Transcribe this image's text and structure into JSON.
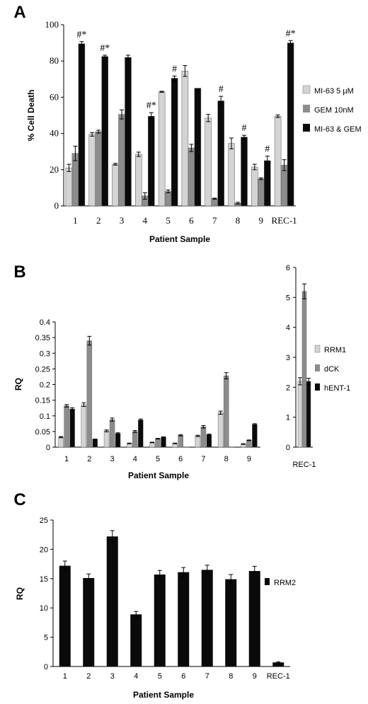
{
  "colors": {
    "light": "#d4d4d4",
    "mid": "#8c8c8c",
    "dark": "#0a0a0a"
  },
  "chart_data": [
    {
      "panel": "A",
      "type": "bar",
      "ylabel": "% Cell Death",
      "xlabel": "Patient Sample",
      "ylim": [
        0,
        100
      ],
      "yticks": [
        0,
        20,
        40,
        60,
        80,
        100
      ],
      "categories": [
        "1",
        "2",
        "3",
        "4",
        "5",
        "6",
        "7",
        "8",
        "9",
        "REC-1"
      ],
      "series": [
        {
          "name": "MI-63 5 μM",
          "color": "light",
          "values": [
            21,
            39.5,
            23,
            28.5,
            63,
            74.5,
            48.5,
            34.5,
            21.5,
            49.5
          ],
          "errors": [
            2,
            1,
            0.5,
            1.2,
            0.3,
            3,
            2,
            3,
            1.5,
            0.7
          ]
        },
        {
          "name": "GEM 10nM",
          "color": "mid",
          "values": [
            29,
            41,
            50.5,
            5.5,
            8,
            32,
            4,
            1.5,
            15,
            22.5
          ],
          "errors": [
            4,
            0.8,
            2.5,
            1.8,
            0.8,
            2,
            0.3,
            0.5,
            0.5,
            3
          ]
        },
        {
          "name": "MI-63 & GEM",
          "color": "dark",
          "values": [
            89.5,
            82.5,
            82,
            49.5,
            70.5,
            65,
            58,
            38,
            25,
            90
          ],
          "errors": [
            1.2,
            0.7,
            1.2,
            2,
            1.2,
            0,
            2.5,
            1,
            2.5,
            1.3
          ]
        }
      ],
      "annotations": [
        {
          "category": "1",
          "series": "MI-63 & GEM",
          "text": "#*"
        },
        {
          "category": "2",
          "series": "MI-63 & GEM",
          "text": "#*"
        },
        {
          "category": "4",
          "series": "MI-63 & GEM",
          "text": "#*"
        },
        {
          "category": "5",
          "series": "MI-63 & GEM",
          "text": "#"
        },
        {
          "category": "7",
          "series": "MI-63 & GEM",
          "text": "#"
        },
        {
          "category": "8",
          "series": "MI-63 & GEM",
          "text": "#"
        },
        {
          "category": "9",
          "series": "MI-63 & GEM",
          "text": "#"
        },
        {
          "category": "REC-1",
          "series": "MI-63 & GEM",
          "text": "#*"
        }
      ]
    },
    {
      "panel": "B",
      "type": "bar",
      "ylabel": "RQ",
      "xlabel": "Patient Sample",
      "ylim": [
        0,
        0.4
      ],
      "yticks": [
        0,
        0.05,
        0.1,
        0.15,
        0.2,
        0.25,
        0.3,
        0.35,
        0.4
      ],
      "categories": [
        "1",
        "2",
        "3",
        "4",
        "5",
        "6",
        "7",
        "8",
        "9"
      ],
      "series": [
        {
          "name": "RRM1",
          "color": "light",
          "values": [
            0.032,
            0.136,
            0.052,
            0.012,
            0.015,
            0.012,
            0.036,
            0.11,
            0.01
          ],
          "errors": [
            0.002,
            0.006,
            0.003,
            0.001,
            0.001,
            0.001,
            0.002,
            0.005,
            0.001
          ]
        },
        {
          "name": "dCK",
          "color": "mid",
          "values": [
            0.132,
            0.34,
            0.088,
            0.05,
            0.027,
            0.038,
            0.065,
            0.228,
            0.022
          ],
          "errors": [
            0.004,
            0.014,
            0.005,
            0.003,
            0.001,
            0.002,
            0.004,
            0.01,
            0.001
          ]
        },
        {
          "name": "hENT-1",
          "color": "dark",
          "values": [
            0.122,
            0.025,
            0.044,
            0.087,
            0.032,
            0,
            0.04,
            0,
            0.073
          ],
          "errors": [
            0.004,
            0.001,
            0.002,
            0.003,
            0.001,
            0,
            0.002,
            0,
            0.002
          ]
        }
      ]
    },
    {
      "panel": "B-inset",
      "type": "bar",
      "ylim": [
        0,
        6
      ],
      "yticks": [
        0,
        1,
        2,
        3,
        4,
        5,
        6
      ],
      "categories": [
        "REC-1"
      ],
      "series": [
        {
          "name": "RRM1",
          "color": "light",
          "values": [
            2.2
          ],
          "errors": [
            0.12
          ]
        },
        {
          "name": "dCK",
          "color": "mid",
          "values": [
            5.2
          ],
          "errors": [
            0.25
          ]
        },
        {
          "name": "hENT-1",
          "color": "dark",
          "values": [
            2.2
          ],
          "errors": [
            0.1
          ]
        }
      ]
    },
    {
      "panel": "C",
      "type": "bar",
      "ylabel": "RQ",
      "xlabel": "Patient Sample",
      "ylim": [
        0,
        25
      ],
      "yticks": [
        0,
        5,
        10,
        15,
        20,
        25
      ],
      "categories": [
        "1",
        "2",
        "3",
        "4",
        "5",
        "6",
        "7",
        "8",
        "9",
        "REC-1"
      ],
      "series": [
        {
          "name": "RRM2",
          "color": "dark",
          "values": [
            17.2,
            15.1,
            22.2,
            8.9,
            15.7,
            16.1,
            16.5,
            14.9,
            16.3,
            0.7
          ],
          "errors": [
            0.8,
            0.7,
            1.0,
            0.5,
            0.7,
            0.8,
            0.8,
            0.8,
            0.8,
            0.1
          ]
        }
      ]
    }
  ]
}
